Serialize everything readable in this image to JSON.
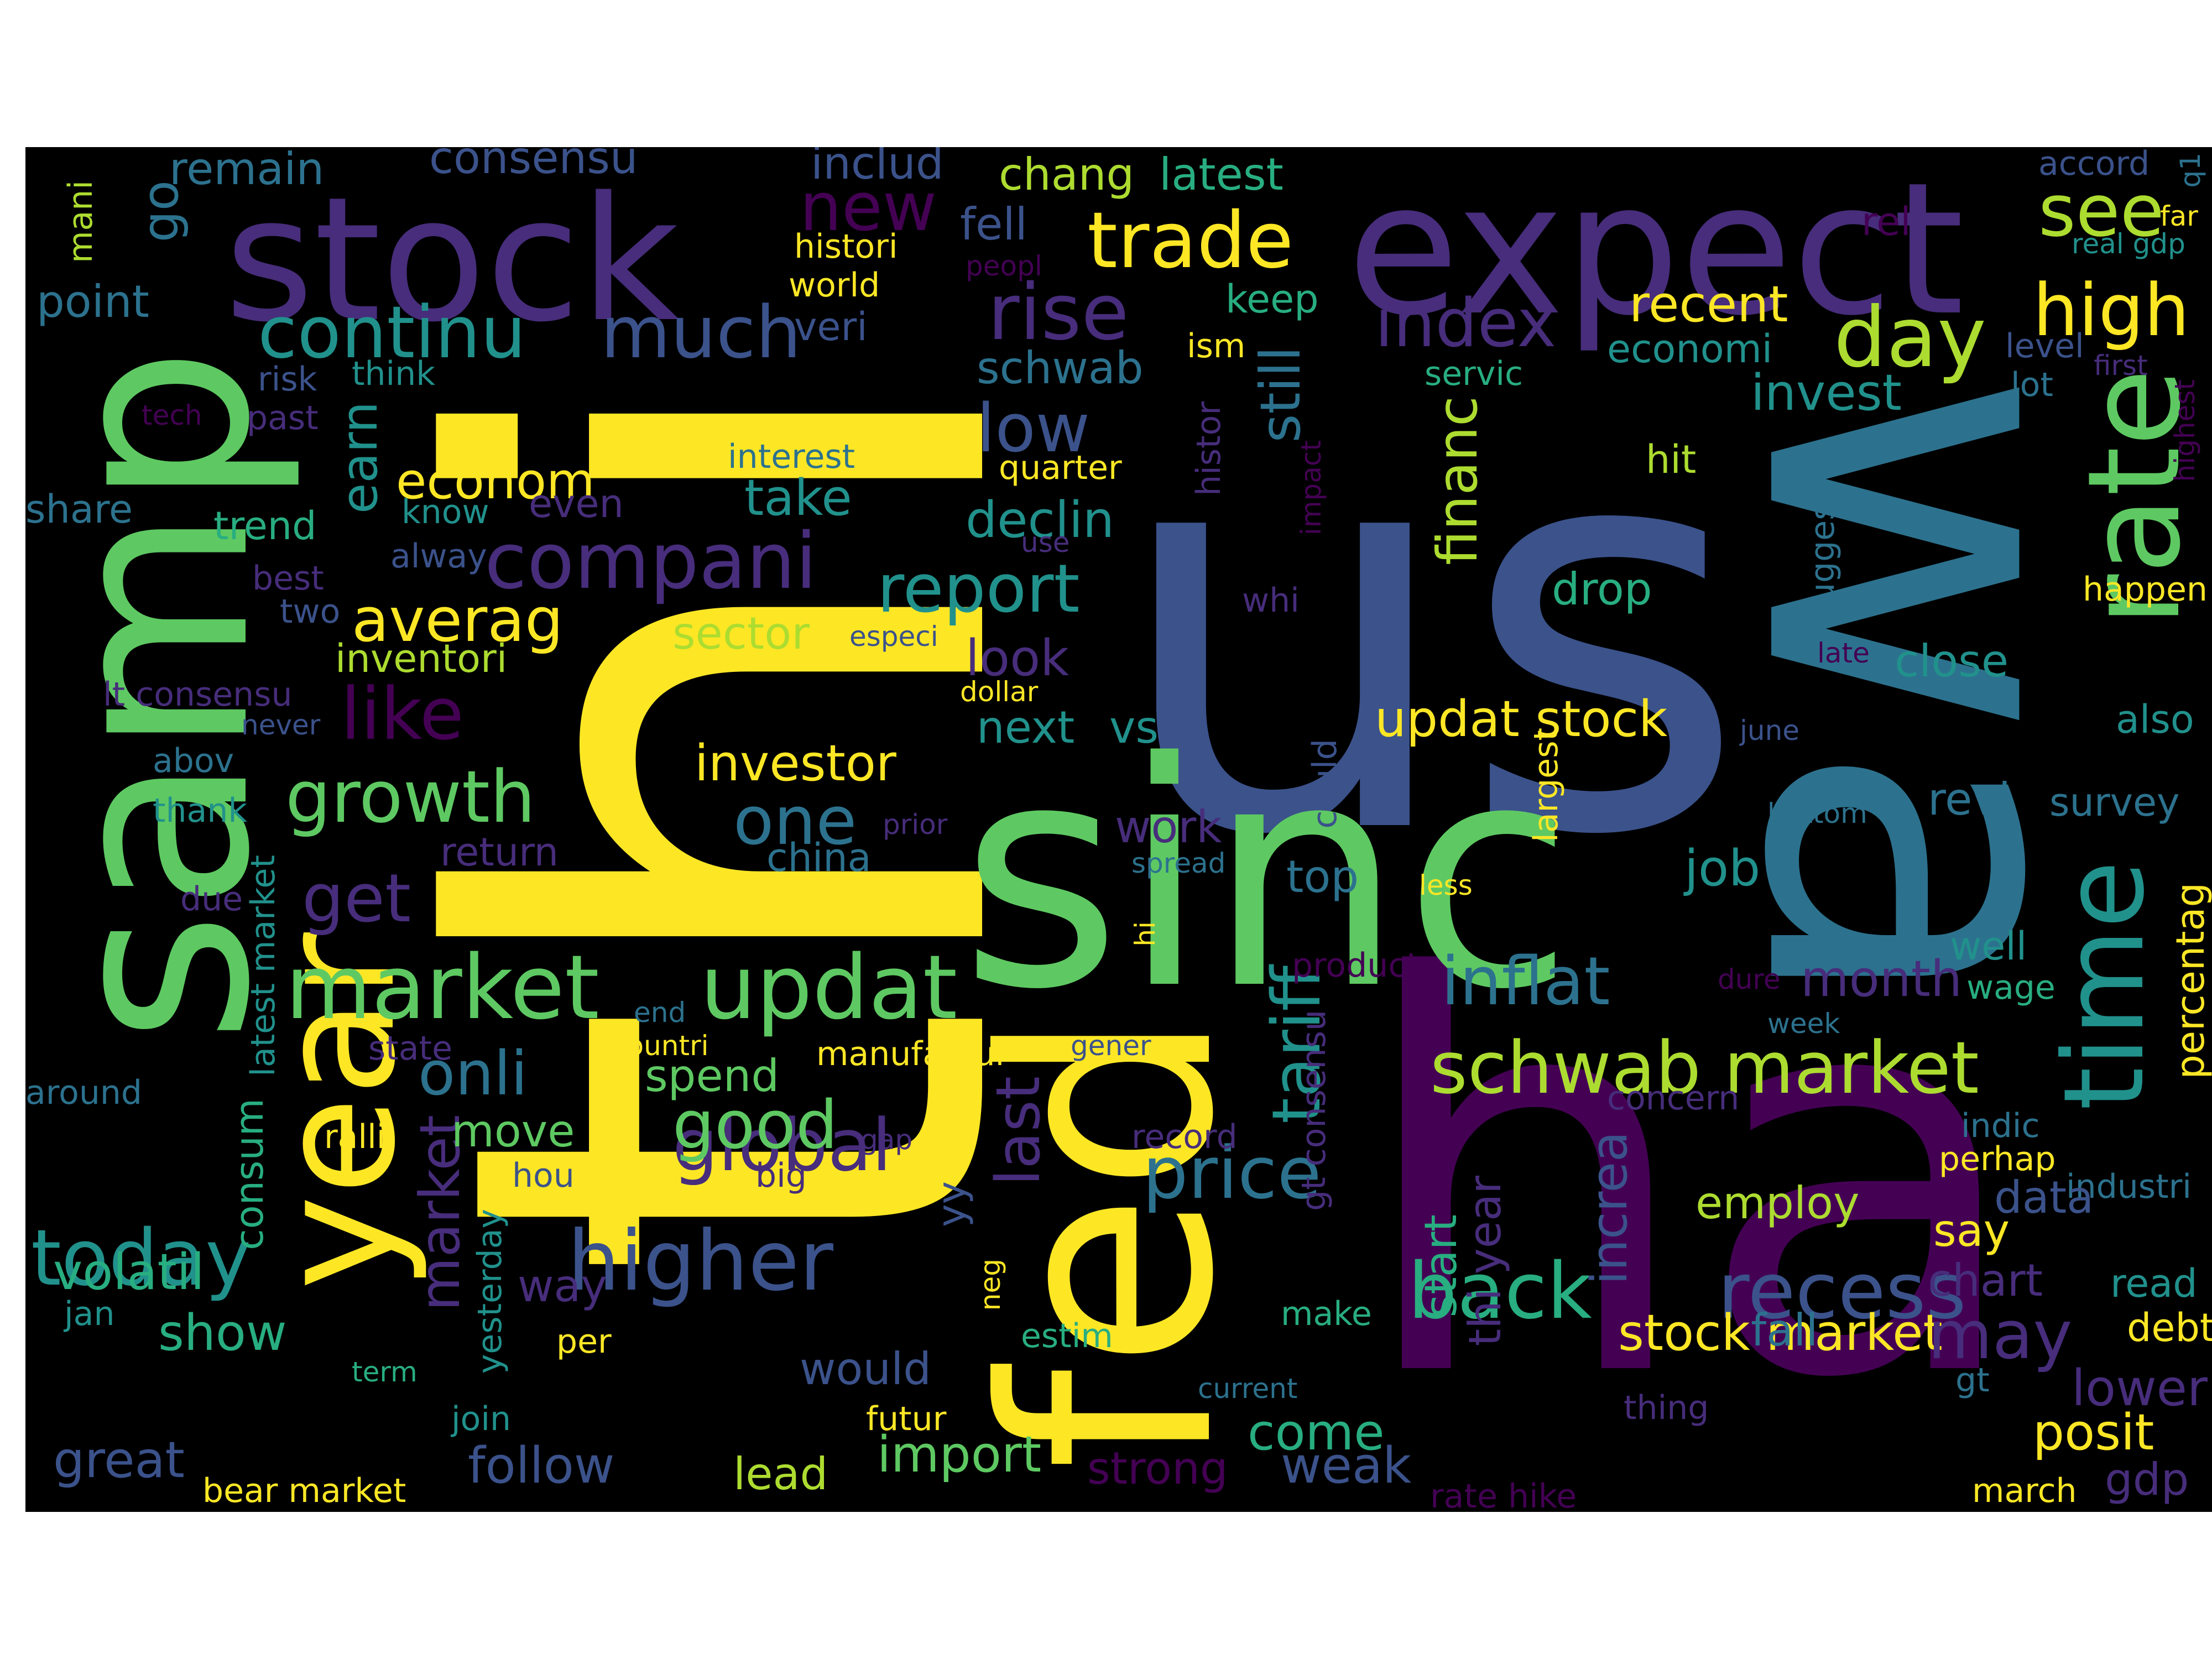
{
  "colors": {
    "background": "#000000",
    "page": "#ffffff",
    "palette": {
      "purple": "#440154",
      "indigo": "#472d7b",
      "violet": "#3b528b",
      "blue": "#2c728e",
      "teal": "#21918c",
      "green": "#28ae80",
      "lightgreen": "#5ec962",
      "lime": "#addc30",
      "yellow": "#fde725"
    }
  },
  "words": [
    {
      "text": "thi"
    },
    {
      "text": "us"
    },
    {
      "text": "wa"
    },
    {
      "text": "ha"
    },
    {
      "text": "sinc"
    },
    {
      "text": "fed"
    },
    {
      "text": "samp"
    },
    {
      "text": "expect"
    },
    {
      "text": "stock"
    },
    {
      "text": "year"
    },
    {
      "text": "rate"
    },
    {
      "text": "time"
    },
    {
      "text": "compani"
    },
    {
      "text": "market"
    },
    {
      "text": "updat"
    },
    {
      "text": "trade"
    },
    {
      "text": "continu"
    },
    {
      "text": "much"
    },
    {
      "text": "rise"
    },
    {
      "text": "day"
    },
    {
      "text": "high"
    },
    {
      "text": "see"
    },
    {
      "text": "index"
    },
    {
      "text": "new"
    },
    {
      "text": "growth"
    },
    {
      "text": "like"
    },
    {
      "text": "averag"
    },
    {
      "text": "report"
    },
    {
      "text": "low"
    },
    {
      "text": "higher"
    },
    {
      "text": "today"
    },
    {
      "text": "global"
    },
    {
      "text": "price"
    },
    {
      "text": "back"
    },
    {
      "text": "recess"
    },
    {
      "text": "schwab market"
    },
    {
      "text": "inflat"
    },
    {
      "text": "one"
    },
    {
      "text": "get"
    },
    {
      "text": "good"
    },
    {
      "text": "onli"
    },
    {
      "text": "tariff"
    },
    {
      "text": "financ"
    },
    {
      "text": "still"
    },
    {
      "text": "last"
    },
    {
      "text": "go"
    },
    {
      "text": "earn"
    },
    {
      "text": "market"
    },
    {
      "text": "stock market"
    },
    {
      "text": "investor"
    },
    {
      "text": "updat stock"
    },
    {
      "text": "remain"
    },
    {
      "text": "consensu"
    },
    {
      "text": "includ"
    },
    {
      "text": "chang"
    },
    {
      "text": "latest"
    },
    {
      "text": "accord"
    },
    {
      "text": "fell"
    },
    {
      "text": "histori"
    },
    {
      "text": "world"
    },
    {
      "text": "veri"
    },
    {
      "text": "peopl"
    },
    {
      "text": "rel"
    },
    {
      "text": "recent"
    },
    {
      "text": "economi"
    },
    {
      "text": "keep"
    },
    {
      "text": "ism"
    },
    {
      "text": "schwab"
    },
    {
      "text": "point"
    },
    {
      "text": "think"
    },
    {
      "text": "risk"
    },
    {
      "text": "tech"
    },
    {
      "text": "past"
    },
    {
      "text": "interest"
    },
    {
      "text": "quarter"
    },
    {
      "text": "take"
    },
    {
      "text": "declin"
    },
    {
      "text": "econom"
    },
    {
      "text": "share"
    },
    {
      "text": "know"
    },
    {
      "text": "even"
    },
    {
      "text": "trend"
    },
    {
      "text": "alway"
    },
    {
      "text": "best"
    },
    {
      "text": "two"
    },
    {
      "text": "inventori"
    },
    {
      "text": "sector"
    },
    {
      "text": "especi"
    },
    {
      "text": "look"
    },
    {
      "text": "dollar"
    },
    {
      "text": "lt consensu"
    },
    {
      "text": "never"
    },
    {
      "text": "next"
    },
    {
      "text": "vs"
    },
    {
      "text": "abov"
    },
    {
      "text": "thank"
    },
    {
      "text": "return"
    },
    {
      "text": "china"
    },
    {
      "text": "prior"
    },
    {
      "text": "work"
    },
    {
      "text": "due"
    },
    {
      "text": "top"
    },
    {
      "text": "job"
    },
    {
      "text": "spread"
    },
    {
      "text": "less"
    },
    {
      "text": "servic"
    },
    {
      "text": "invest"
    },
    {
      "text": "first"
    },
    {
      "text": "level"
    },
    {
      "text": "lot"
    },
    {
      "text": "hit"
    },
    {
      "text": "drop"
    },
    {
      "text": "happen"
    },
    {
      "text": "whi"
    },
    {
      "text": "close"
    },
    {
      "text": "late"
    },
    {
      "text": "june"
    },
    {
      "text": "also"
    },
    {
      "text": "revi"
    },
    {
      "text": "survey"
    },
    {
      "text": "bottom"
    },
    {
      "text": "month"
    },
    {
      "text": "well"
    },
    {
      "text": "wage"
    },
    {
      "text": "week"
    },
    {
      "text": "dure"
    },
    {
      "text": "product"
    },
    {
      "text": "end"
    },
    {
      "text": "state"
    },
    {
      "text": "countri"
    },
    {
      "text": "manufactur"
    },
    {
      "text": "gener"
    },
    {
      "text": "around"
    },
    {
      "text": "spend"
    },
    {
      "text": "ralli"
    },
    {
      "text": "move"
    },
    {
      "text": "hou"
    },
    {
      "text": "big"
    },
    {
      "text": "gap"
    },
    {
      "text": "record"
    },
    {
      "text": "concern"
    },
    {
      "text": "indic"
    },
    {
      "text": "perhap"
    },
    {
      "text": "industri"
    },
    {
      "text": "data"
    },
    {
      "text": "employ"
    },
    {
      "text": "say"
    },
    {
      "text": "chart"
    },
    {
      "text": "read"
    },
    {
      "text": "debt"
    },
    {
      "text": "may"
    },
    {
      "text": "fall"
    },
    {
      "text": "volatil"
    },
    {
      "text": "jan"
    },
    {
      "text": "show"
    },
    {
      "text": "way"
    },
    {
      "text": "would"
    },
    {
      "text": "per"
    },
    {
      "text": "term"
    },
    {
      "text": "make"
    },
    {
      "text": "estim"
    },
    {
      "text": "current"
    },
    {
      "text": "come"
    },
    {
      "text": "futur"
    },
    {
      "text": "join"
    },
    {
      "text": "great"
    },
    {
      "text": "bear market"
    },
    {
      "text": "follow"
    },
    {
      "text": "lead"
    },
    {
      "text": "import"
    },
    {
      "text": "strong"
    },
    {
      "text": "weak"
    },
    {
      "text": "rate hike"
    },
    {
      "text": "thing"
    },
    {
      "text": "gt"
    },
    {
      "text": "posit"
    },
    {
      "text": "lower"
    },
    {
      "text": "march"
    },
    {
      "text": "gdp"
    },
    {
      "text": "real gdp"
    },
    {
      "text": "far"
    },
    {
      "text": "q1"
    },
    {
      "text": "mani"
    },
    {
      "text": "highest"
    },
    {
      "text": "percentag"
    },
    {
      "text": "suggest"
    },
    {
      "text": "largest"
    },
    {
      "text": "could"
    },
    {
      "text": "impact"
    },
    {
      "text": "histor"
    },
    {
      "text": "hi"
    },
    {
      "text": "gt consensu"
    },
    {
      "text": "thi year"
    },
    {
      "text": "start"
    },
    {
      "text": "increa"
    },
    {
      "text": "yy"
    },
    {
      "text": "neg"
    },
    {
      "text": "yesterday"
    },
    {
      "text": "consum"
    },
    {
      "text": "latest market"
    },
    {
      "text": "use"
    }
  ]
}
